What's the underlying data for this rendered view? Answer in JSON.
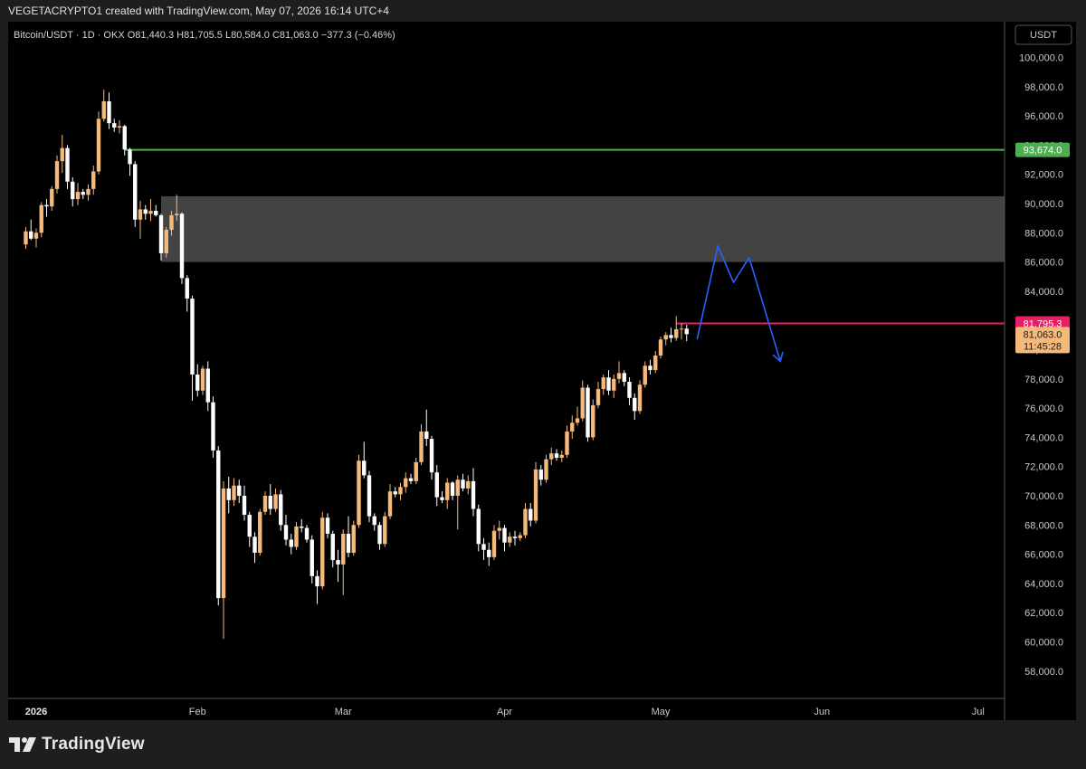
{
  "header": {
    "text": "VEGETACRYPTO1 created with TradingView.com, May 07, 2026 16:14 UTC+4"
  },
  "legend": {
    "text": "Bitcoin/USDT · 1D · OKX  O81,440.3  H81,705.5  L80,584.0  C81,063.0  −377.3 (−0.46%)"
  },
  "currency": "USDT",
  "footer": {
    "brand": "TradingView"
  },
  "colors": {
    "up": "#f5b97a",
    "down": "#ffffff",
    "green_line": "#4caf50",
    "red_line": "#e91e63",
    "zone": "#4a4a4a",
    "arrow": "#2962ff"
  },
  "chart_data": {
    "type": "candlestick",
    "yaxis": {
      "min": 56000,
      "max": 102000,
      "ticks": [
        58000,
        60000,
        62000,
        64000,
        66000,
        68000,
        70000,
        72000,
        74000,
        76000,
        78000,
        80000,
        82000,
        84000,
        86000,
        88000,
        90000,
        92000,
        94000,
        96000,
        98000,
        100000
      ]
    },
    "xaxis": {
      "labels": [
        {
          "date": "2026-01-01",
          "label": "2026",
          "bold": true
        },
        {
          "date": "2026-02-01",
          "label": "Feb"
        },
        {
          "date": "2026-03-01",
          "label": "Mar"
        },
        {
          "date": "2026-04-01",
          "label": "Apr"
        },
        {
          "date": "2026-05-01",
          "label": "May"
        },
        {
          "date": "2026-06-01",
          "label": "Jun"
        },
        {
          "date": "2026-07-01",
          "label": "Jul"
        }
      ]
    },
    "candles": [
      [
        "2025-12-30",
        87200,
        88400,
        86900,
        88100
      ],
      [
        "2025-12-31",
        88100,
        88900,
        87500,
        87600
      ],
      [
        "2026-01-01",
        87600,
        88300,
        87000,
        88000
      ],
      [
        "2026-01-02",
        88000,
        90100,
        87700,
        89900
      ],
      [
        "2026-01-03",
        89900,
        90300,
        89100,
        89800
      ],
      [
        "2026-01-04",
        89800,
        91200,
        89500,
        91000
      ],
      [
        "2026-01-05",
        91000,
        93300,
        90700,
        92900
      ],
      [
        "2026-01-06",
        92900,
        94700,
        92100,
        93800
      ],
      [
        "2026-01-07",
        93800,
        94000,
        91000,
        91500
      ],
      [
        "2026-01-08",
        91500,
        91800,
        89800,
        90300
      ],
      [
        "2026-01-09",
        90300,
        91400,
        89900,
        90800
      ],
      [
        "2026-01-10",
        90800,
        91000,
        90300,
        90600
      ],
      [
        "2026-01-11",
        90600,
        91300,
        90200,
        91000
      ],
      [
        "2026-01-12",
        91000,
        92600,
        90600,
        92200
      ],
      [
        "2026-01-13",
        92200,
        96300,
        92000,
        95800
      ],
      [
        "2026-01-14",
        95800,
        97800,
        95600,
        97000
      ],
      [
        "2026-01-15",
        97000,
        97600,
        95100,
        95500
      ],
      [
        "2026-01-16",
        95500,
        95800,
        94900,
        95200
      ],
      [
        "2026-01-17",
        95200,
        95700,
        94800,
        95300
      ],
      [
        "2026-01-18",
        95300,
        95400,
        93300,
        93700
      ],
      [
        "2026-01-19",
        93700,
        93800,
        91900,
        92700
      ],
      [
        "2026-01-20",
        92700,
        92900,
        88400,
        88900
      ],
      [
        "2026-01-21",
        88900,
        90200,
        87600,
        89600
      ],
      [
        "2026-01-22",
        89600,
        89900,
        88900,
        89300
      ],
      [
        "2026-01-23",
        89300,
        90300,
        88800,
        89500
      ],
      [
        "2026-01-24",
        89500,
        89900,
        89100,
        89200
      ],
      [
        "2026-01-25",
        89200,
        89300,
        86100,
        86600
      ],
      [
        "2026-01-26",
        86600,
        88400,
        86300,
        88200
      ],
      [
        "2026-01-27",
        88200,
        89500,
        87800,
        89200
      ],
      [
        "2026-01-28",
        89200,
        90600,
        88800,
        89300
      ],
      [
        "2026-01-29",
        89300,
        89400,
        84500,
        84900
      ],
      [
        "2026-01-30",
        84900,
        85100,
        82600,
        83500
      ],
      [
        "2026-01-31",
        83500,
        83700,
        76500,
        78300
      ],
      [
        "2026-02-01",
        78300,
        79000,
        76800,
        77200
      ],
      [
        "2026-02-02",
        77200,
        78900,
        76900,
        78700
      ],
      [
        "2026-02-03",
        78700,
        79200,
        75800,
        76400
      ],
      [
        "2026-02-04",
        76400,
        76800,
        72600,
        73100
      ],
      [
        "2026-02-05",
        73100,
        73400,
        62500,
        63000
      ],
      [
        "2026-02-06",
        63000,
        71000,
        60200,
        70500
      ],
      [
        "2026-02-07",
        70500,
        71300,
        68800,
        69700
      ],
      [
        "2026-02-08",
        69700,
        71200,
        69300,
        70700
      ],
      [
        "2026-02-09",
        70700,
        71100,
        69500,
        70000
      ],
      [
        "2026-02-10",
        70000,
        70700,
        68300,
        68700
      ],
      [
        "2026-02-11",
        68700,
        68900,
        66500,
        67200
      ],
      [
        "2026-02-12",
        67200,
        67500,
        65400,
        66100
      ],
      [
        "2026-02-13",
        66100,
        69100,
        65900,
        68900
      ],
      [
        "2026-02-14",
        68900,
        70300,
        68700,
        70000
      ],
      [
        "2026-02-15",
        70000,
        70800,
        68700,
        69100
      ],
      [
        "2026-02-16",
        69100,
        70500,
        68900,
        70100
      ],
      [
        "2026-02-17",
        70100,
        70400,
        67600,
        68000
      ],
      [
        "2026-02-18",
        68000,
        68700,
        66600,
        67000
      ],
      [
        "2026-02-19",
        67000,
        67400,
        66000,
        66500
      ],
      [
        "2026-02-20",
        66500,
        68200,
        66300,
        67900
      ],
      [
        "2026-02-21",
        67900,
        68400,
        67500,
        67800
      ],
      [
        "2026-02-22",
        67800,
        68000,
        66800,
        67000
      ],
      [
        "2026-02-23",
        67000,
        67300,
        64000,
        64500
      ],
      [
        "2026-02-24",
        64500,
        64900,
        62600,
        63800
      ],
      [
        "2026-02-25",
        63800,
        68900,
        63600,
        68500
      ],
      [
        "2026-02-26",
        68500,
        68800,
        67100,
        67400
      ],
      [
        "2026-02-27",
        67400,
        67600,
        65100,
        65600
      ],
      [
        "2026-02-28",
        65600,
        66300,
        64100,
        65300
      ],
      [
        "2026-03-01",
        65300,
        67700,
        63200,
        67400
      ],
      [
        "2026-03-02",
        67400,
        68600,
        65800,
        66100
      ],
      [
        "2026-03-03",
        66100,
        68300,
        65900,
        68000
      ],
      [
        "2026-03-04",
        68000,
        72800,
        67800,
        72400
      ],
      [
        "2026-03-05",
        72400,
        73700,
        71200,
        71400
      ],
      [
        "2026-03-06",
        71400,
        71700,
        68200,
        68600
      ],
      [
        "2026-03-07",
        68600,
        68800,
        67600,
        68000
      ],
      [
        "2026-03-08",
        68000,
        68200,
        66300,
        66700
      ],
      [
        "2026-03-09",
        66700,
        68900,
        66500,
        68600
      ],
      [
        "2026-03-10",
        68600,
        70800,
        68400,
        70300
      ],
      [
        "2026-03-11",
        70300,
        70600,
        69900,
        70100
      ],
      [
        "2026-03-12",
        70100,
        70900,
        69700,
        70600
      ],
      [
        "2026-03-13",
        70600,
        71600,
        70200,
        71200
      ],
      [
        "2026-03-14",
        71200,
        71500,
        70800,
        71000
      ],
      [
        "2026-03-15",
        71000,
        72600,
        70800,
        72300
      ],
      [
        "2026-03-16",
        72300,
        74900,
        72100,
        74400
      ],
      [
        "2026-03-17",
        74400,
        75900,
        73400,
        73900
      ],
      [
        "2026-03-18",
        73900,
        74100,
        71100,
        71600
      ],
      [
        "2026-03-19",
        71600,
        72100,
        69300,
        69900
      ],
      [
        "2026-03-20",
        69900,
        70300,
        69500,
        69700
      ],
      [
        "2026-03-21",
        69700,
        71200,
        69100,
        70900
      ],
      [
        "2026-03-22",
        70900,
        71000,
        69700,
        70000
      ],
      [
        "2026-03-23",
        70000,
        71400,
        67700,
        71100
      ],
      [
        "2026-03-24",
        71100,
        71500,
        70300,
        70500
      ],
      [
        "2026-03-25",
        70500,
        71400,
        70100,
        71000
      ],
      [
        "2026-03-26",
        71000,
        71900,
        68600,
        69100
      ],
      [
        "2026-03-27",
        69100,
        69400,
        66200,
        66700
      ],
      [
        "2026-03-28",
        66700,
        67100,
        65600,
        66300
      ],
      [
        "2026-03-29",
        66300,
        66800,
        65200,
        65800
      ],
      [
        "2026-03-30",
        65800,
        68000,
        65600,
        67600
      ],
      [
        "2026-03-31",
        67600,
        68300,
        67000,
        67800
      ],
      [
        "2026-04-01",
        67800,
        68000,
        66200,
        66800
      ],
      [
        "2026-04-02",
        66800,
        67500,
        66500,
        67200
      ],
      [
        "2026-04-03",
        67200,
        67600,
        66600,
        67100
      ],
      [
        "2026-04-04",
        67100,
        67500,
        66900,
        67300
      ],
      [
        "2026-04-05",
        67300,
        69500,
        67100,
        69100
      ],
      [
        "2026-04-06",
        69100,
        69500,
        67900,
        68300
      ],
      [
        "2026-04-07",
        68300,
        72300,
        68100,
        71800
      ],
      [
        "2026-04-08",
        71800,
        72100,
        70700,
        71100
      ],
      [
        "2026-04-09",
        71100,
        72800,
        70900,
        72500
      ],
      [
        "2026-04-10",
        72500,
        73300,
        72100,
        72900
      ],
      [
        "2026-04-11",
        72900,
        73200,
        72400,
        72600
      ],
      [
        "2026-04-12",
        72600,
        73100,
        72300,
        72800
      ],
      [
        "2026-04-13",
        72800,
        74800,
        72600,
        74400
      ],
      [
        "2026-04-14",
        74400,
        75500,
        73900,
        75000
      ],
      [
        "2026-04-15",
        75000,
        76100,
        74800,
        75300
      ],
      [
        "2026-04-16",
        75300,
        77900,
        75100,
        77400
      ],
      [
        "2026-04-17",
        77400,
        77600,
        73700,
        74000
      ],
      [
        "2026-04-18",
        74000,
        76600,
        73800,
        76200
      ],
      [
        "2026-04-19",
        76200,
        77800,
        76000,
        77300
      ],
      [
        "2026-04-20",
        77300,
        78300,
        76900,
        78100
      ],
      [
        "2026-04-21",
        78100,
        78600,
        76900,
        77200
      ],
      [
        "2026-04-22",
        77200,
        78300,
        76700,
        78000
      ],
      [
        "2026-04-23",
        78000,
        79200,
        77700,
        78400
      ],
      [
        "2026-04-24",
        78400,
        78600,
        77500,
        77800
      ],
      [
        "2026-04-25",
        77800,
        78100,
        76200,
        76700
      ],
      [
        "2026-04-26",
        76700,
        77000,
        75200,
        75800
      ],
      [
        "2026-04-27",
        75800,
        77900,
        75600,
        77600
      ],
      [
        "2026-04-28",
        77600,
        79200,
        77400,
        78900
      ],
      [
        "2026-04-29",
        78900,
        79300,
        78300,
        78600
      ],
      [
        "2026-04-30",
        78600,
        79900,
        78400,
        79600
      ],
      [
        "2026-05-01",
        79600,
        80900,
        79400,
        80700
      ],
      [
        "2026-05-02",
        80700,
        81200,
        80300,
        81000
      ],
      [
        "2026-05-03",
        81000,
        81500,
        80500,
        80800
      ],
      [
        "2026-05-04",
        80800,
        82300,
        80600,
        81400
      ],
      [
        "2026-05-05",
        81400,
        81800,
        80700,
        81440
      ],
      [
        "2026-05-06",
        81440.3,
        81705.5,
        80584.0,
        81063.0
      ]
    ],
    "levels": [
      {
        "name": "resistance",
        "value": 93674.0,
        "label": "93,674.0",
        "start": "2026-01-18",
        "color": "#4caf50"
      },
      {
        "name": "current-high",
        "value": 81795.3,
        "label": "81,795.3",
        "start": "2026-05-04",
        "color": "#e91e63"
      }
    ],
    "last_price": {
      "value": 81063.0,
      "label": "81,063.0",
      "countdown": "11:45:28"
    },
    "zone": {
      "from": 86000,
      "to": 90500,
      "start": "2026-01-25"
    },
    "projection": [
      [
        "2026-05-08",
        80700
      ],
      [
        "2026-05-12",
        87100
      ],
      [
        "2026-05-15",
        84600
      ],
      [
        "2026-05-18",
        86300
      ],
      [
        "2026-05-24",
        79200
      ]
    ]
  }
}
